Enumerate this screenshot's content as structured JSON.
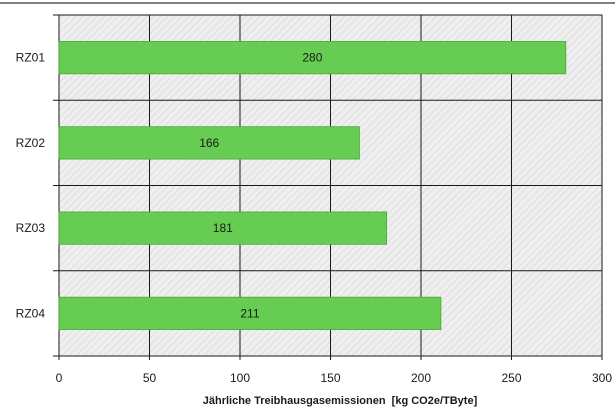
{
  "chart_data": {
    "type": "bar",
    "orientation": "horizontal",
    "title": "",
    "categories": [
      "RZ01",
      "RZ02",
      "RZ03",
      "RZ04"
    ],
    "values": [
      280,
      166,
      181,
      211
    ],
    "data_labels": [
      "280",
      "166",
      "181",
      "211"
    ],
    "xlabel": "Jährliche Treibhausgasemissionen  [kg CO2e/TByte]",
    "ylabel": "",
    "xlim": [
      0,
      300
    ],
    "xticks": [
      0,
      50,
      100,
      150,
      200,
      250,
      300
    ],
    "xtick_labels": [
      "0",
      "50",
      "100",
      "150",
      "200",
      "250",
      "300"
    ],
    "grid": true,
    "legend": "none",
    "colors": {
      "bar": "#66cc52",
      "bar_edge": "#4aa83a",
      "plot_background": "#efefef",
      "hatch": "#d4d4d4",
      "grid": "#1a1a1a",
      "top_rule": "#555555"
    }
  }
}
